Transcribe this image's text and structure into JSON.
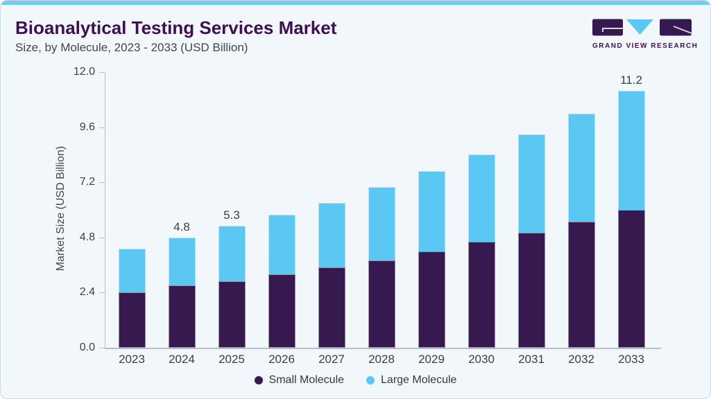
{
  "header": {
    "title": "Bioanalytical Testing Services Market",
    "subtitle": "Size, by Molecule, 2023 - 2033 (USD Billion)",
    "logo_text": "GRAND VIEW RESEARCH"
  },
  "colors": {
    "small_molecule": "#35194F",
    "large_molecule": "#5BC8F4",
    "top_accent": "#71CDF2",
    "title_text": "#3D1054",
    "body_text": "#42464B",
    "axis_line": "#B9BFC6",
    "card_background": "#F1F7FA",
    "card_border": "#CDD8DF"
  },
  "chart_data": {
    "type": "bar",
    "stacked": true,
    "title": "Bioanalytical Testing Services Market Size, by Molecule, 2023 - 2033 (USD Billion)",
    "ylabel": "Market Size (USD Billion)",
    "categories": [
      "2023",
      "2024",
      "2025",
      "2026",
      "2027",
      "2028",
      "2029",
      "2030",
      "2031",
      "2032",
      "2033"
    ],
    "series": [
      {
        "name": "Small Molecule",
        "color": "#35194F",
        "values": [
          2.4,
          2.7,
          2.9,
          3.2,
          3.5,
          3.8,
          4.2,
          4.6,
          5.0,
          5.5,
          6.0
        ]
      },
      {
        "name": "Large Molecule",
        "color": "#5BC8F4",
        "values": [
          1.9,
          2.1,
          2.4,
          2.6,
          2.8,
          3.2,
          3.5,
          3.8,
          4.3,
          4.7,
          5.2
        ]
      }
    ],
    "totals": [
      4.3,
      4.8,
      5.3,
      5.8,
      6.3,
      7.0,
      7.7,
      8.4,
      9.3,
      10.2,
      11.2
    ],
    "bar_labels": {
      "2024": "4.8",
      "2025": "5.3",
      "2033": "11.2"
    },
    "yticks": [
      "0.0",
      "2.4",
      "4.8",
      "7.2",
      "9.6",
      "12.0"
    ],
    "ylim": [
      0,
      12
    ],
    "grid": false,
    "legend_position": "bottom"
  },
  "legend": {
    "items": [
      {
        "label": "Small Molecule"
      },
      {
        "label": "Large Molecule"
      }
    ]
  }
}
